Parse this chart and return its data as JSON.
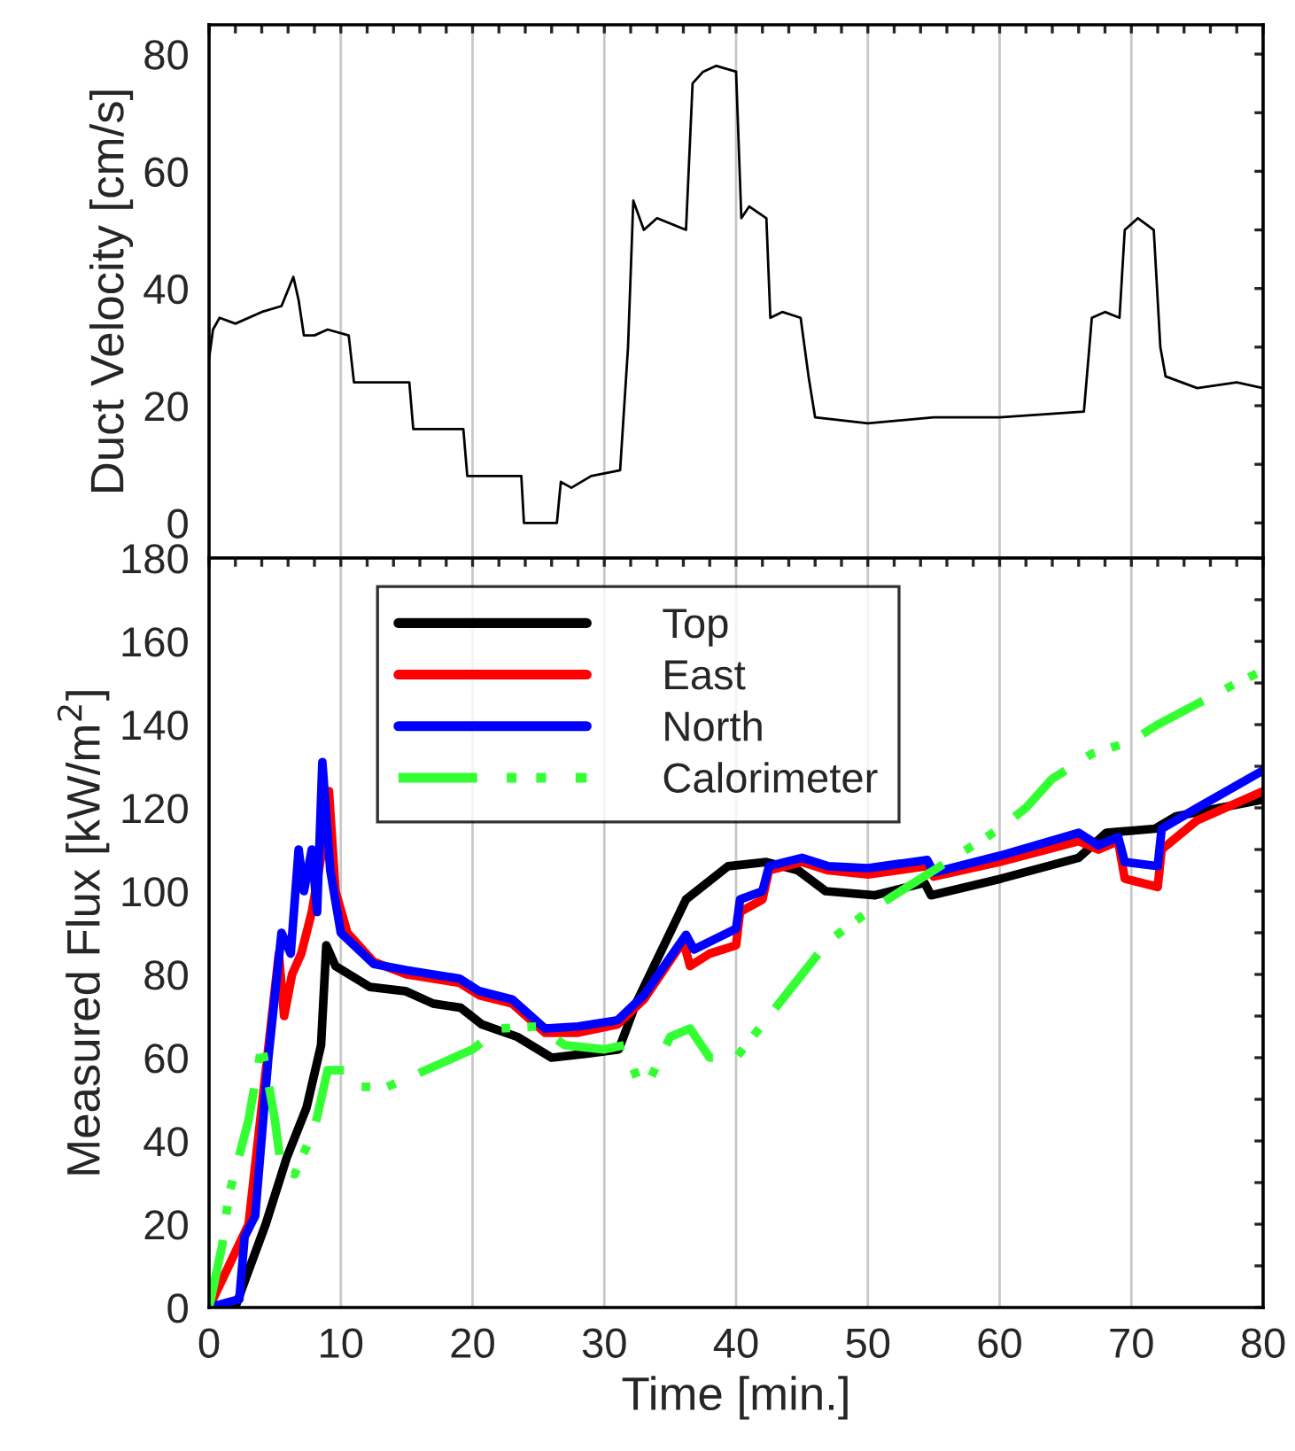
{
  "chart_data": [
    {
      "type": "line",
      "ylabel": "Duct Velocity [cm/s]",
      "xlim": [
        0,
        80
      ],
      "ylim": [
        -6,
        85
      ],
      "grid": "x",
      "tick_labels": "y",
      "xticks": [
        0,
        {
          "value": 2,
          "label": null
        },
        {
          "value": 4,
          "label": null
        },
        {
          "value": 6,
          "label": null
        },
        {
          "value": 8,
          "label": null
        },
        10,
        {
          "value": 12,
          "label": null
        },
        {
          "value": 14,
          "label": null
        },
        {
          "value": 16,
          "label": null
        },
        {
          "value": 18,
          "label": null
        },
        20,
        {
          "value": 22,
          "label": null
        },
        {
          "value": 24,
          "label": null
        },
        {
          "value": 26,
          "label": null
        },
        {
          "value": 28,
          "label": null
        },
        30,
        {
          "value": 32,
          "label": null
        },
        {
          "value": 34,
          "label": null
        },
        {
          "value": 36,
          "label": null
        },
        {
          "value": 38,
          "label": null
        },
        40,
        {
          "value": 42,
          "label": null
        },
        {
          "value": 44,
          "label": null
        },
        {
          "value": 46,
          "label": null
        },
        {
          "value": 48,
          "label": null
        },
        50,
        {
          "value": 52,
          "label": null
        },
        {
          "value": 54,
          "label": null
        },
        {
          "value": 56,
          "label": null
        },
        {
          "value": 58,
          "label": null
        },
        60,
        {
          "value": 62,
          "label": null
        },
        {
          "value": 64,
          "label": null
        },
        {
          "value": 66,
          "label": null
        },
        {
          "value": 68,
          "label": null
        },
        70,
        {
          "value": 72,
          "label": null
        },
        {
          "value": 74,
          "label": null
        },
        {
          "value": 76,
          "label": null
        },
        {
          "value": 78,
          "label": null
        },
        80
      ],
      "yticks": [
        0,
        {
          "value": 10,
          "label": null
        },
        20,
        {
          "value": 30,
          "label": null
        },
        40,
        {
          "value": 50,
          "label": null
        },
        60,
        {
          "value": 70,
          "label": null
        },
        80
      ],
      "series": [
        {
          "color": "#000000",
          "x": [
            0,
            0.3,
            0.8,
            2,
            4,
            5.5,
            6.4,
            6.8,
            7.2,
            8,
            9,
            10.6,
            11,
            13,
            15.2,
            15.5,
            17,
            19.3,
            19.6,
            21,
            23.7,
            23.9,
            26.4,
            26.7,
            27.5,
            29,
            31.2,
            31.8,
            32.2,
            33,
            34,
            36.2,
            36.7,
            37.5,
            38.5,
            40,
            40.4,
            41,
            42.3,
            42.6,
            43.5,
            44.9,
            45.5,
            46,
            50,
            55,
            60,
            66.4,
            67,
            68,
            69.1,
            69.5,
            70.5,
            71.7,
            72.2,
            72.6,
            75,
            78,
            80
          ],
          "values": [
            28,
            33,
            35,
            34,
            36,
            37,
            42,
            38,
            32,
            32,
            33,
            32,
            24,
            24,
            24,
            16,
            16,
            16,
            8,
            8,
            8,
            0,
            0,
            7,
            6,
            8,
            9,
            30,
            55,
            50,
            52,
            50,
            75,
            77,
            78,
            77,
            52,
            54,
            52,
            35,
            36,
            35,
            25,
            18,
            17,
            18,
            18,
            19,
            35,
            36,
            35,
            50,
            52,
            50,
            30,
            25,
            23,
            24,
            23
          ]
        }
      ]
    },
    {
      "type": "line",
      "xlabel": "Time [min.]",
      "ylabel": "Measured Flux [kW/m$^{2}$]",
      "xlim": [
        0,
        80
      ],
      "ylim": [
        0,
        180
      ],
      "grid": "x",
      "legend": "top left",
      "xticks": [
        0,
        {
          "value": 2,
          "label": null
        },
        {
          "value": 4,
          "label": null
        },
        {
          "value": 6,
          "label": null
        },
        {
          "value": 8,
          "label": null
        },
        10,
        {
          "value": 12,
          "label": null
        },
        {
          "value": 14,
          "label": null
        },
        {
          "value": 16,
          "label": null
        },
        {
          "value": 18,
          "label": null
        },
        20,
        {
          "value": 22,
          "label": null
        },
        {
          "value": 24,
          "label": null
        },
        {
          "value": 26,
          "label": null
        },
        {
          "value": 28,
          "label": null
        },
        30,
        {
          "value": 32,
          "label": null
        },
        {
          "value": 34,
          "label": null
        },
        {
          "value": 36,
          "label": null
        },
        {
          "value": 38,
          "label": null
        },
        40,
        {
          "value": 42,
          "label": null
        },
        {
          "value": 44,
          "label": null
        },
        {
          "value": 46,
          "label": null
        },
        {
          "value": 48,
          "label": null
        },
        50,
        {
          "value": 52,
          "label": null
        },
        {
          "value": 54,
          "label": null
        },
        {
          "value": 56,
          "label": null
        },
        {
          "value": 58,
          "label": null
        },
        60,
        {
          "value": 62,
          "label": null
        },
        {
          "value": 64,
          "label": null
        },
        {
          "value": 66,
          "label": null
        },
        {
          "value": 68,
          "label": null
        },
        70,
        {
          "value": 72,
          "label": null
        },
        {
          "value": 74,
          "label": null
        },
        {
          "value": 76,
          "label": null
        },
        {
          "value": 78,
          "label": null
        },
        80
      ],
      "yticks": [
        0,
        {
          "value": 10,
          "label": null
        },
        20,
        {
          "value": 30,
          "label": null
        },
        40,
        {
          "value": 50,
          "label": null
        },
        60,
        {
          "value": 70,
          "label": null
        },
        80,
        {
          "value": 90,
          "label": null
        },
        100,
        {
          "value": 110,
          "label": null
        },
        120,
        {
          "value": 130,
          "label": null
        },
        140,
        {
          "value": 150,
          "label": null
        },
        160,
        {
          "value": 170,
          "label": null
        },
        180
      ],
      "series": [
        {
          "name": "Top",
          "color": "#000000",
          "line_style": "solid",
          "x": [
            0,
            2.1,
            2.9,
            4.3,
            5.9,
            7.4,
            8.5,
            8.9,
            9.6,
            12.2,
            14.9,
            17,
            19.1,
            20.7,
            23.4,
            26,
            28.7,
            31.1,
            32.4,
            36.2,
            39.4,
            42.3,
            44.7,
            46.8,
            50.5,
            54.3,
            54.8,
            60.1,
            66,
            68.1,
            71.8,
            73.4,
            80
          ],
          "values": [
            0,
            1,
            8,
            20,
            36,
            48,
            63,
            87,
            82,
            77,
            76,
            73,
            72,
            68,
            65,
            60,
            61,
            62,
            73,
            98,
            106,
            107,
            105,
            100,
            99,
            102,
            99,
            103,
            108,
            114,
            115,
            118,
            122
          ]
        },
        {
          "name": "East",
          "color": "#ff0000",
          "line_style": "solid",
          "x": [
            0,
            2.3,
            3,
            4.5,
            5.3,
            5.7,
            6.3,
            7,
            7.8,
            8.6,
            9.1,
            9.6,
            10.5,
            12.5,
            15,
            19,
            20.5,
            23,
            25.5,
            28,
            31,
            33,
            36,
            36.5,
            38,
            40,
            40.3,
            42,
            42.5,
            45,
            47,
            50,
            54.5,
            55,
            60,
            66,
            67.5,
            69,
            69.5,
            72,
            72.3,
            75,
            80
          ],
          "values": [
            0,
            null,
            20,
            null,
            85,
            70,
            80,
            85,
            95,
            110,
            124,
            100,
            90,
            83,
            80,
            78,
            75,
            73,
            66,
            66,
            68,
            74,
            88,
            82,
            85,
            87,
            95,
            98,
            105,
            107,
            105,
            104,
            106,
            103.5,
            107,
            112,
            110,
            112,
            103,
            101,
            110,
            117,
            124
          ]
        },
        {
          "name": "North",
          "color": "#0000ff",
          "line_style": "solid",
          "x": [
            0,
            2.3,
            2.7,
            3.5,
            4.5,
            5.5,
            6.2,
            6.8,
            7.2,
            7.8,
            8.2,
            8.6,
            9.2,
            10,
            12.5,
            15,
            19,
            20.5,
            23,
            25.5,
            28,
            31,
            33,
            36.2,
            36.8,
            40,
            40.3,
            42,
            42.5,
            45,
            47,
            50,
            54.5,
            55,
            60,
            66,
            67.5,
            69,
            69.5,
            72,
            72.3,
            75,
            80
          ],
          "values": [
            0,
            2,
            17,
            22,
            60,
            90,
            85,
            110,
            100,
            110,
            95,
            131,
            105,
            90,
            82.5,
            81,
            79,
            76,
            74,
            67,
            67.5,
            69,
            75,
            89.5,
            86,
            91,
            98,
            100,
            106,
            108,
            106,
            105.5,
            107.5,
            104.5,
            108.5,
            114,
            111,
            113,
            107,
            106,
            115,
            120,
            129
          ]
        },
        {
          "name": "Calorimeter",
          "color": "#33ff33",
          "line_style": "dashed",
          "x": [
            0,
            1,
            1.5,
            3,
            4,
            5,
            5.5,
            6.5,
            8,
            9,
            10.5,
            11.5,
            13.5,
            15,
            20,
            22,
            25,
            27,
            30,
            31.5,
            32.5,
            33.5,
            35,
            36.5,
            38,
            40,
            42,
            45,
            47,
            50,
            54,
            56,
            60,
            62,
            64,
            65.5,
            67,
            70,
            72,
            75,
            78,
            80
          ],
          "values": [
            0,
            15,
            27,
            45,
            63,
            45,
            33,
            32,
            43,
            57,
            57,
            53,
            53,
            55,
            62,
            67,
            67.5,
            63,
            62,
            63,
            55,
            55,
            65,
            67,
            60,
            60,
            68,
            80,
            88,
            95,
            103,
            107,
            115,
            120,
            127,
            130,
            133,
            136,
            140,
            145,
            150,
            153
          ]
        }
      ]
    }
  ]
}
